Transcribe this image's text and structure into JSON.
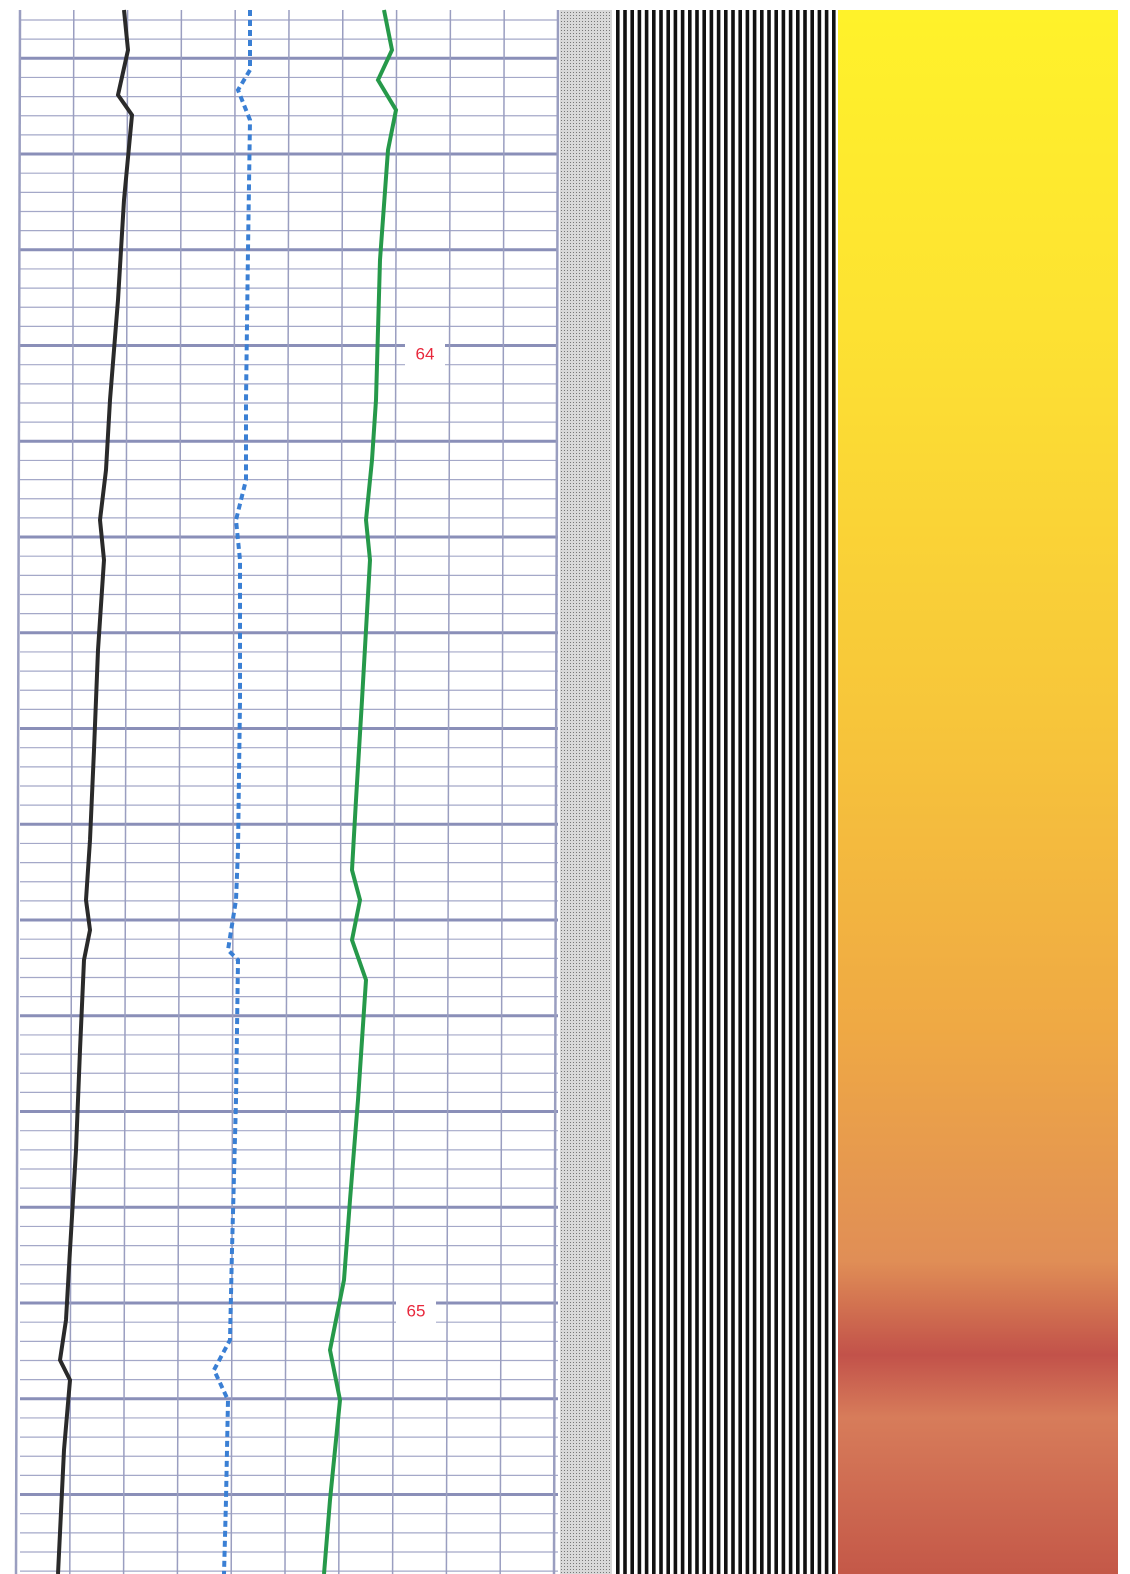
{
  "depth_labels": [
    "64",
    "65"
  ]
}
